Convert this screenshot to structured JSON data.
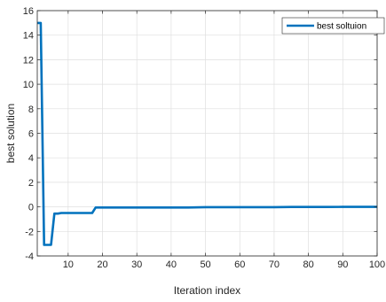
{
  "chart_data": {
    "type": "line",
    "xlabel": "Iteration index",
    "ylabel": "best solution",
    "xlim": [
      1,
      100
    ],
    "ylim": [
      -4,
      16
    ],
    "xticks": [
      10,
      20,
      30,
      40,
      50,
      60,
      70,
      80,
      90,
      100
    ],
    "yticks": [
      -4,
      -2,
      0,
      2,
      4,
      6,
      8,
      10,
      12,
      14,
      16
    ],
    "grid": true,
    "legend_position": "top-right",
    "series": [
      {
        "name": "best soltuion",
        "color": "#0072BD",
        "x": [
          1,
          2,
          3,
          4,
          5,
          6,
          7,
          8,
          9,
          10,
          11,
          12,
          13,
          14,
          15,
          16,
          17,
          18,
          19,
          20,
          25,
          30,
          35,
          40,
          45,
          50,
          55,
          60,
          65,
          70,
          75,
          80,
          85,
          90,
          95,
          100
        ],
        "y": [
          15.0,
          15.0,
          -3.1,
          -3.1,
          -3.1,
          -0.55,
          -0.55,
          -0.5,
          -0.5,
          -0.5,
          -0.5,
          -0.5,
          -0.5,
          -0.5,
          -0.5,
          -0.5,
          -0.5,
          -0.05,
          -0.05,
          -0.05,
          -0.05,
          -0.05,
          -0.05,
          -0.05,
          -0.05,
          -0.02,
          -0.02,
          -0.02,
          -0.02,
          -0.02,
          -0.01,
          -0.01,
          -0.01,
          0.0,
          0.0,
          0.0
        ]
      }
    ]
  }
}
